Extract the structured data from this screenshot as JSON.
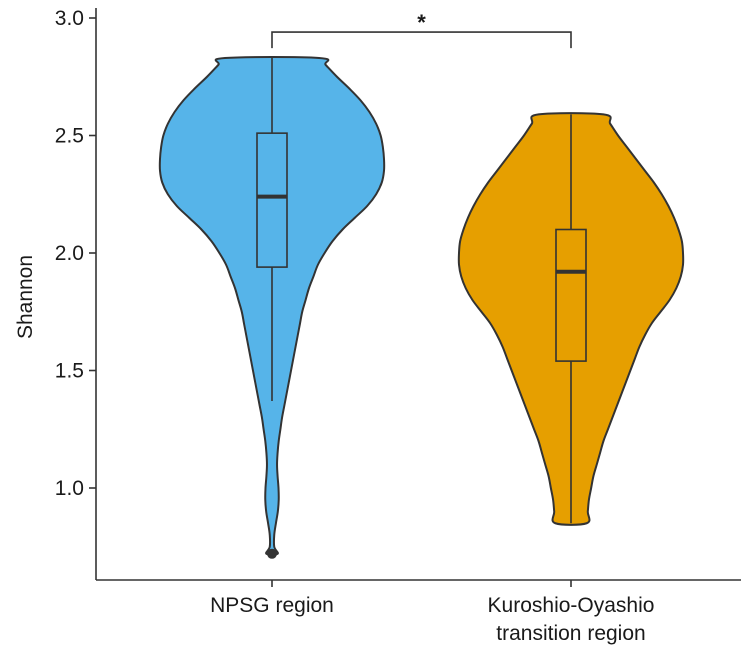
{
  "chart_data": {
    "type": "violin",
    "ylabel": "Shannon",
    "ylim": [
      0.62,
      3.01
    ],
    "yticks": [
      1.0,
      1.5,
      2.0,
      2.5,
      3.0
    ],
    "ytick_labels": [
      "1.0",
      "1.5",
      "2.0",
      "2.5",
      "3.0"
    ],
    "categories": [
      {
        "label_lines": [
          "NPSG region"
        ]
      },
      {
        "label_lines": [
          "Kuroshio-Oyashio",
          "transition region"
        ]
      }
    ],
    "series": [
      {
        "category": "NPSG region",
        "color": "#56B4E9",
        "min": 0.72,
        "max": 2.83,
        "box": {
          "q1": 1.94,
          "median": 2.24,
          "q3": 2.51,
          "whisker_low": 1.37,
          "whisker_high": 2.83
        },
        "outliers": [
          0.72
        ],
        "density": [
          [
            2.83,
            0.42
          ],
          [
            2.8,
            0.48
          ],
          [
            2.75,
            0.58
          ],
          [
            2.7,
            0.69
          ],
          [
            2.65,
            0.79
          ],
          [
            2.6,
            0.87
          ],
          [
            2.55,
            0.93
          ],
          [
            2.5,
            0.97
          ],
          [
            2.45,
            0.99
          ],
          [
            2.4,
            1.0
          ],
          [
            2.35,
            1.0
          ],
          [
            2.3,
            0.98
          ],
          [
            2.25,
            0.93
          ],
          [
            2.2,
            0.85
          ],
          [
            2.15,
            0.74
          ],
          [
            2.1,
            0.63
          ],
          [
            2.05,
            0.54
          ],
          [
            2.0,
            0.47
          ],
          [
            1.95,
            0.41
          ],
          [
            1.9,
            0.37
          ],
          [
            1.85,
            0.33
          ],
          [
            1.8,
            0.3
          ],
          [
            1.75,
            0.27
          ],
          [
            1.7,
            0.25
          ],
          [
            1.65,
            0.23
          ],
          [
            1.6,
            0.21
          ],
          [
            1.55,
            0.19
          ],
          [
            1.5,
            0.17
          ],
          [
            1.45,
            0.15
          ],
          [
            1.4,
            0.13
          ],
          [
            1.35,
            0.11
          ],
          [
            1.3,
            0.09
          ],
          [
            1.25,
            0.075
          ],
          [
            1.2,
            0.06
          ],
          [
            1.15,
            0.05
          ],
          [
            1.1,
            0.045
          ],
          [
            1.05,
            0.05
          ],
          [
            1.0,
            0.058
          ],
          [
            0.95,
            0.06
          ],
          [
            0.9,
            0.052
          ],
          [
            0.85,
            0.035
          ],
          [
            0.8,
            0.02
          ],
          [
            0.75,
            0.02
          ],
          [
            0.72,
            0.05
          ]
        ]
      },
      {
        "category": "Kuroshio-Oyashio transition region",
        "color": "#E69F00",
        "min": 0.85,
        "max": 2.59,
        "box": {
          "q1": 1.54,
          "median": 1.92,
          "q3": 2.1,
          "whisker_low": 0.85,
          "whisker_high": 2.59
        },
        "outliers": [],
        "density": [
          [
            2.59,
            0.29
          ],
          [
            2.55,
            0.35
          ],
          [
            2.5,
            0.42
          ],
          [
            2.45,
            0.5
          ],
          [
            2.4,
            0.58
          ],
          [
            2.35,
            0.66
          ],
          [
            2.3,
            0.74
          ],
          [
            2.25,
            0.81
          ],
          [
            2.2,
            0.87
          ],
          [
            2.15,
            0.92
          ],
          [
            2.1,
            0.96
          ],
          [
            2.05,
            0.99
          ],
          [
            2.0,
            1.0
          ],
          [
            1.95,
            1.0
          ],
          [
            1.9,
            0.98
          ],
          [
            1.85,
            0.94
          ],
          [
            1.8,
            0.88
          ],
          [
            1.75,
            0.8
          ],
          [
            1.7,
            0.72
          ],
          [
            1.65,
            0.66
          ],
          [
            1.6,
            0.61
          ],
          [
            1.55,
            0.57
          ],
          [
            1.5,
            0.53
          ],
          [
            1.45,
            0.49
          ],
          [
            1.4,
            0.45
          ],
          [
            1.35,
            0.41
          ],
          [
            1.3,
            0.37
          ],
          [
            1.25,
            0.33
          ],
          [
            1.2,
            0.29
          ],
          [
            1.15,
            0.26
          ],
          [
            1.1,
            0.23
          ],
          [
            1.05,
            0.2
          ],
          [
            1.0,
            0.18
          ],
          [
            0.95,
            0.16
          ],
          [
            0.9,
            0.15
          ],
          [
            0.85,
            0.14
          ]
        ]
      }
    ],
    "significance": {
      "label": "*",
      "y": 2.94,
      "between": [
        0,
        1
      ]
    },
    "grid": false,
    "legend": "none"
  }
}
